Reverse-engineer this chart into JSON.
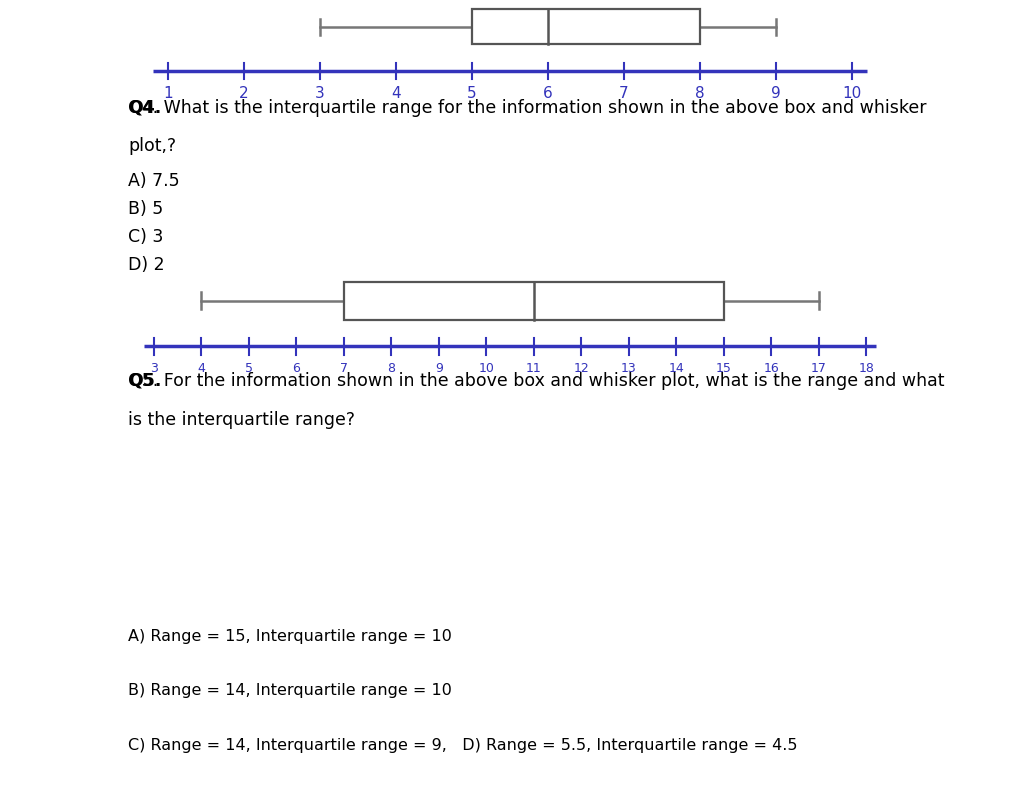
{
  "bp1": {
    "whisker_low": 3,
    "whisker_high": 9,
    "q1": 5,
    "median": 6,
    "q3": 8,
    "scale_min": 1,
    "scale_max": 10,
    "ticks": [
      1,
      2,
      3,
      4,
      5,
      6,
      7,
      8,
      9,
      10
    ]
  },
  "bp2": {
    "whisker_low": 4,
    "whisker_high": 17,
    "q1": 7,
    "median": 11,
    "q3": 15,
    "scale_min": 3,
    "scale_max": 18,
    "ticks": [
      3,
      4,
      5,
      6,
      7,
      8,
      9,
      10,
      11,
      12,
      13,
      14,
      15,
      16,
      17,
      18
    ]
  },
  "bg_color": "#ffffff",
  "box_edge_color": "#555555",
  "whisker_color": "#777777",
  "axis_color": "#3333bb",
  "tick_color": "#3333bb",
  "tick_label_color": "#3333bb",
  "text_color": "#000000",
  "separator_bg": "#2e2e2e",
  "font_size_ticks1": 11,
  "font_size_ticks2": 9,
  "font_size_text": 12.5,
  "font_size_answers": 11.5,
  "q4_line1": "Q4. What is the interquartile range for the information shown in the above box and whisker",
  "q4_line2": "plot,?",
  "q4_choices": [
    "A) 7.5",
    "B) 5",
    "C) 3",
    "D) 2"
  ],
  "q5_line1": "Q5. For the information shown in the above box and whisker plot, what is the range and what",
  "q5_line2": "is the interquartile range?",
  "ans_line1": "A) Range = 15, Interquartile range = 10",
  "ans_line2": "B) Range = 14, Interquartile range = 10",
  "ans_line3": "C) Range = 14, Interquartile range = 9,   D) Range = 5.5, Interquartile range = 4.5"
}
